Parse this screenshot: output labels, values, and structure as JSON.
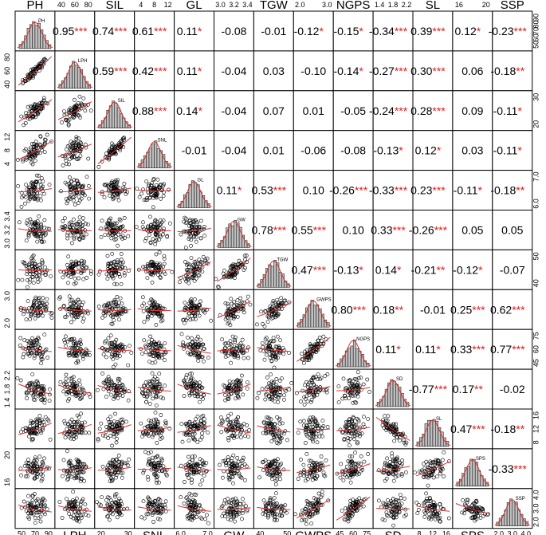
{
  "chart_data": {
    "type": "scatter_matrix",
    "variables": [
      "PH",
      "SIL",
      "GL",
      "TGW",
      "NGPS",
      "SL",
      "SSP",
      "LPH",
      "SNL",
      "GW",
      "GWPS",
      "SD",
      "SPS"
    ],
    "order": [
      "PH",
      "LPH",
      "SIL",
      "SNL",
      "GL",
      "GW",
      "TGW",
      "GWPS",
      "NGPS",
      "SD",
      "SL",
      "SPS",
      "SSP"
    ],
    "top_labels": [
      "PH",
      "SIL",
      "GL",
      "TGW",
      "NGPS",
      "SL",
      "SSP"
    ],
    "bottom_labels": [
      "LPH",
      "SNL",
      "GW",
      "GWPS",
      "SD",
      "SPS"
    ],
    "diagonal_labels": [
      "PH",
      "LPH",
      "SIL",
      "SNL",
      "GL",
      "GW",
      "TGW",
      "GWPS",
      "NGPS",
      "SD",
      "SL",
      "SPS",
      "SSP"
    ],
    "ranges": {
      "PH": [
        55,
        100
      ],
      "LPH": [
        25,
        85
      ],
      "SIL": [
        15,
        35
      ],
      "SNL": [
        3,
        15
      ],
      "GL": [
        5.8,
        7.4
      ],
      "GW": [
        2.9,
        3.5
      ],
      "TGW": [
        36,
        56
      ],
      "GWPS": [
        1.9,
        3.3
      ],
      "NGPS": [
        42,
        80
      ],
      "SD": [
        1.3,
        2.3
      ],
      "SL": [
        6,
        16
      ],
      "SPS": [
        14,
        24
      ],
      "SSP": [
        1.8,
        4.4
      ]
    },
    "tick_labels": {
      "top": [
        [
          "40",
          "60",
          "80"
        ],
        [
          "4",
          "8",
          "12"
        ],
        [
          "3.0",
          "3.2",
          "3.4"
        ],
        [
          "2.0",
          "3.0"
        ],
        [
          "1.4",
          "1.8",
          "2.2"
        ],
        [
          "16",
          "20"
        ]
      ],
      "bottom": [
        [
          "50",
          "70",
          "90"
        ],
        [
          "20",
          "30"
        ],
        [
          "6.0",
          "7.0"
        ],
        [
          "40",
          "50"
        ],
        [
          "45",
          "60",
          "75"
        ],
        [
          "8",
          "12",
          "16"
        ],
        [
          "2.0",
          "3.0",
          "4.0"
        ]
      ],
      "left": [
        [
          "40",
          "60",
          "80"
        ],
        [
          "4",
          "8",
          "12"
        ],
        [
          "3.0",
          "3.2",
          "3.4"
        ],
        [
          "2.0",
          "3.0"
        ],
        [
          "1.4",
          "1.8",
          "2.2"
        ],
        [
          "16",
          "20"
        ]
      ],
      "right": [
        [
          "50",
          "60",
          "70",
          "80",
          "90"
        ],
        [
          "20",
          "30"
        ],
        [
          "6.0",
          "7.0"
        ],
        [
          "40",
          "50"
        ],
        [
          "45",
          "60",
          "75"
        ],
        [
          "8",
          "12",
          "16"
        ],
        [
          "2.0",
          "3.0",
          "4.0"
        ]
      ]
    },
    "correlations": [
      {
        "row": 0,
        "col": 1,
        "value": "0.95",
        "stars": "***"
      },
      {
        "row": 0,
        "col": 2,
        "value": "0.74",
        "stars": "***"
      },
      {
        "row": 0,
        "col": 3,
        "value": "0.61",
        "stars": "***"
      },
      {
        "row": 0,
        "col": 4,
        "value": "0.11",
        "stars": "*"
      },
      {
        "row": 0,
        "col": 5,
        "value": "-0.08",
        "stars": ""
      },
      {
        "row": 0,
        "col": 6,
        "value": "-0.01",
        "stars": ""
      },
      {
        "row": 0,
        "col": 7,
        "value": "-0.12",
        "stars": "*"
      },
      {
        "row": 0,
        "col": 8,
        "value": "-0.15",
        "stars": "*"
      },
      {
        "row": 0,
        "col": 9,
        "value": "-0.34",
        "stars": "***"
      },
      {
        "row": 0,
        "col": 10,
        "value": "0.39",
        "stars": "***"
      },
      {
        "row": 0,
        "col": 11,
        "value": "0.12",
        "stars": "*"
      },
      {
        "row": 0,
        "col": 12,
        "value": "-0.23",
        "stars": "***"
      },
      {
        "row": 1,
        "col": 2,
        "value": "0.59",
        "stars": "***"
      },
      {
        "row": 1,
        "col": 3,
        "value": "0.42",
        "stars": "***"
      },
      {
        "row": 1,
        "col": 4,
        "value": "0.11",
        "stars": "*"
      },
      {
        "row": 1,
        "col": 5,
        "value": "-0.04",
        "stars": ""
      },
      {
        "row": 1,
        "col": 6,
        "value": "0.03",
        "stars": ""
      },
      {
        "row": 1,
        "col": 7,
        "value": "-0.10",
        "stars": ""
      },
      {
        "row": 1,
        "col": 8,
        "value": "-0.14",
        "stars": "*"
      },
      {
        "row": 1,
        "col": 9,
        "value": "-0.27",
        "stars": "***"
      },
      {
        "row": 1,
        "col": 10,
        "value": "0.30",
        "stars": "***"
      },
      {
        "row": 1,
        "col": 11,
        "value": "0.06",
        "stars": ""
      },
      {
        "row": 1,
        "col": 12,
        "value": "-0.18",
        "stars": "**"
      },
      {
        "row": 2,
        "col": 3,
        "value": "0.88",
        "stars": "***"
      },
      {
        "row": 2,
        "col": 4,
        "value": "0.14",
        "stars": "*"
      },
      {
        "row": 2,
        "col": 5,
        "value": "-0.04",
        "stars": ""
      },
      {
        "row": 2,
        "col": 6,
        "value": "0.07",
        "stars": ""
      },
      {
        "row": 2,
        "col": 7,
        "value": "0.01",
        "stars": ""
      },
      {
        "row": 2,
        "col": 8,
        "value": "-0.05",
        "stars": ""
      },
      {
        "row": 2,
        "col": 9,
        "value": "-0.24",
        "stars": "***"
      },
      {
        "row": 2,
        "col": 10,
        "value": "0.28",
        "stars": "***"
      },
      {
        "row": 2,
        "col": 11,
        "value": "0.09",
        "stars": ""
      },
      {
        "row": 2,
        "col": 12,
        "value": "-0.11",
        "stars": "*"
      },
      {
        "row": 3,
        "col": 4,
        "value": "-0.01",
        "stars": ""
      },
      {
        "row": 3,
        "col": 5,
        "value": "-0.04",
        "stars": ""
      },
      {
        "row": 3,
        "col": 6,
        "value": "0.01",
        "stars": ""
      },
      {
        "row": 3,
        "col": 7,
        "value": "-0.06",
        "stars": ""
      },
      {
        "row": 3,
        "col": 8,
        "value": "-0.08",
        "stars": ""
      },
      {
        "row": 3,
        "col": 9,
        "value": "-0.13",
        "stars": "*"
      },
      {
        "row": 3,
        "col": 10,
        "value": "0.12",
        "stars": "*"
      },
      {
        "row": 3,
        "col": 11,
        "value": "0.03",
        "stars": ""
      },
      {
        "row": 3,
        "col": 12,
        "value": "-0.11",
        "stars": "*"
      },
      {
        "row": 4,
        "col": 5,
        "value": "0.11",
        "stars": "*"
      },
      {
        "row": 4,
        "col": 6,
        "value": "0.53",
        "stars": "***"
      },
      {
        "row": 4,
        "col": 7,
        "value": "0.10",
        "stars": ""
      },
      {
        "row": 4,
        "col": 8,
        "value": "-0.26",
        "stars": "***"
      },
      {
        "row": 4,
        "col": 9,
        "value": "-0.33",
        "stars": "***"
      },
      {
        "row": 4,
        "col": 10,
        "value": "0.23",
        "stars": "***"
      },
      {
        "row": 4,
        "col": 11,
        "value": "-0.11",
        "stars": "*"
      },
      {
        "row": 4,
        "col": 12,
        "value": "-0.18",
        "stars": "**"
      },
      {
        "row": 5,
        "col": 6,
        "value": "0.78",
        "stars": "***"
      },
      {
        "row": 5,
        "col": 7,
        "value": "0.55",
        "stars": "***"
      },
      {
        "row": 5,
        "col": 8,
        "value": "0.10",
        "stars": ""
      },
      {
        "row": 5,
        "col": 9,
        "value": "0.33",
        "stars": "***"
      },
      {
        "row": 5,
        "col": 10,
        "value": "-0.26",
        "stars": "***"
      },
      {
        "row": 5,
        "col": 11,
        "value": "0.05",
        "stars": ""
      },
      {
        "row": 5,
        "col": 12,
        "value": "0.05",
        "stars": ""
      },
      {
        "row": 6,
        "col": 7,
        "value": "0.47",
        "stars": "***"
      },
      {
        "row": 6,
        "col": 8,
        "value": "-0.13",
        "stars": "*"
      },
      {
        "row": 6,
        "col": 9,
        "value": "0.14",
        "stars": "*"
      },
      {
        "row": 6,
        "col": 10,
        "value": "-0.21",
        "stars": "**"
      },
      {
        "row": 6,
        "col": 11,
        "value": "-0.12",
        "stars": "*"
      },
      {
        "row": 6,
        "col": 12,
        "value": "-0.07",
        "stars": ""
      },
      {
        "row": 7,
        "col": 8,
        "value": "0.80",
        "stars": "***"
      },
      {
        "row": 7,
        "col": 9,
        "value": "0.18",
        "stars": "**"
      },
      {
        "row": 7,
        "col": 10,
        "value": "-0.01",
        "stars": ""
      },
      {
        "row": 7,
        "col": 11,
        "value": "0.25",
        "stars": "***"
      },
      {
        "row": 7,
        "col": 12,
        "value": "0.62",
        "stars": "***"
      },
      {
        "row": 8,
        "col": 9,
        "value": "0.11",
        "stars": "*"
      },
      {
        "row": 8,
        "col": 10,
        "value": "0.11",
        "stars": "*"
      },
      {
        "row": 8,
        "col": 11,
        "value": "0.33",
        "stars": "***"
      },
      {
        "row": 8,
        "col": 12,
        "value": "0.77",
        "stars": "***"
      },
      {
        "row": 9,
        "col": 10,
        "value": "-0.77",
        "stars": "***"
      },
      {
        "row": 9,
        "col": 11,
        "value": "0.17",
        "stars": "**"
      },
      {
        "row": 9,
        "col": 12,
        "value": "-0.02",
        "stars": ""
      },
      {
        "row": 10,
        "col": 11,
        "value": "0.47",
        "stars": "***"
      },
      {
        "row": 10,
        "col": 12,
        "value": "-0.18",
        "stars": "**"
      },
      {
        "row": 11,
        "col": 12,
        "value": "-0.33",
        "stars": "***"
      }
    ],
    "colors": {
      "text": "#000000",
      "stars": "#e01b1b",
      "histogram": "#bfbfbf",
      "fit_line": "#e03030",
      "points": "#000000"
    }
  }
}
